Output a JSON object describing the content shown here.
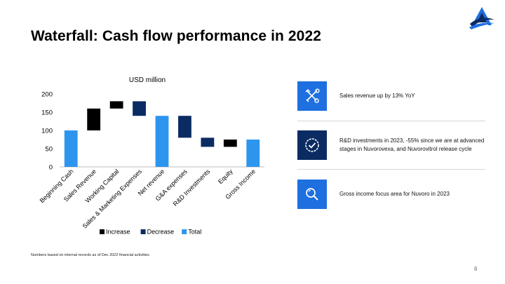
{
  "slide": {
    "title": "Waterfall: Cash flow performance in 2022",
    "footnote": "Numbers based on internal records as of Dec 2022 financial activities",
    "page_number": "6"
  },
  "colors": {
    "increase": "#000000",
    "decrease": "#0b2b63",
    "total": "#2e95ee",
    "icon_blue": "#1e6fe0",
    "icon_navy": "#0b2b63"
  },
  "chart_data": {
    "type": "bar",
    "subtype": "waterfall",
    "title": "USD million",
    "categories": [
      "Beginning Cash",
      "Sales Revenue",
      "Working Capital",
      "Sales & Marketing Expenses",
      "Net revenue",
      "G&A expenses",
      "R&D Investments",
      "Equity",
      "Gross Income"
    ],
    "bars": [
      {
        "category": "Beginning Cash",
        "kind": "Total",
        "start": 0,
        "end": 100
      },
      {
        "category": "Sales Revenue",
        "kind": "Increase",
        "start": 100,
        "end": 160
      },
      {
        "category": "Working Capital",
        "kind": "Increase",
        "start": 160,
        "end": 180
      },
      {
        "category": "Sales & Marketing Expenses",
        "kind": "Decrease",
        "start": 180,
        "end": 140
      },
      {
        "category": "Net revenue",
        "kind": "Total",
        "start": 0,
        "end": 140
      },
      {
        "category": "G&A expenses",
        "kind": "Decrease",
        "start": 140,
        "end": 80
      },
      {
        "category": "R&D Investments",
        "kind": "Decrease",
        "start": 80,
        "end": 55
      },
      {
        "category": "Equity",
        "kind": "Increase",
        "start": 55,
        "end": 75
      },
      {
        "category": "Gross Income",
        "kind": "Total",
        "start": 0,
        "end": 75
      }
    ],
    "ylim": [
      0,
      200
    ],
    "yticks": [
      0,
      50,
      100,
      150,
      200
    ],
    "legend": {
      "position": "bottom",
      "entries": [
        "Increase",
        "Decrease",
        "Total"
      ]
    },
    "grid": false
  },
  "insights": [
    {
      "icon": "tools-icon",
      "text": "Sales revenue up by 13% YoY"
    },
    {
      "icon": "check-circle-icon",
      "text": "R&D investments in 2023, -55% since we are at advanced stages in Nuvorovexa, and Nuvorovitrol release cycle"
    },
    {
      "icon": "magnifier-icon",
      "text": "Gross income focus area for Nuvoro in 2023"
    }
  ]
}
